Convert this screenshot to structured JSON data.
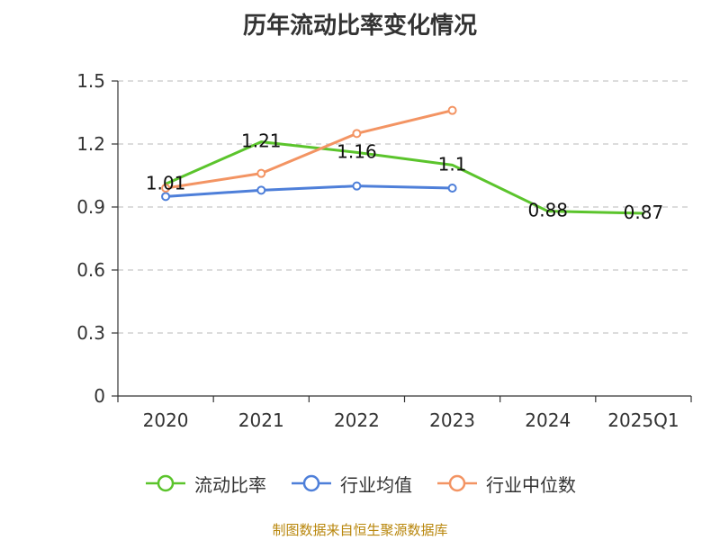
{
  "chart_data": {
    "type": "line",
    "title": "历年流动比率变化情况",
    "categories": [
      "2020",
      "2021",
      "2022",
      "2023",
      "2024",
      "2025Q1"
    ],
    "y_ticks": [
      "0",
      "0.3",
      "0.6",
      "0.9",
      "1.2",
      "1.5"
    ],
    "ylim": [
      0,
      1.5
    ],
    "grid": true,
    "legend_position": "bottom",
    "series": [
      {
        "name": "流动比率",
        "color": "#5bc42c",
        "values": [
          1.01,
          1.21,
          1.16,
          1.1,
          0.88,
          0.87
        ],
        "labels": [
          "1.01",
          "1.21",
          "1.16",
          "1.1",
          "0.88",
          "0.87"
        ],
        "show_points": false
      },
      {
        "name": "行业均值",
        "color": "#4e7fd9",
        "values": [
          0.95,
          0.98,
          1.0,
          0.99,
          null,
          null
        ],
        "show_points": true
      },
      {
        "name": "行业中位数",
        "color": "#f39463",
        "values": [
          0.99,
          1.06,
          1.25,
          1.36,
          null,
          null
        ],
        "show_points": true
      }
    ]
  },
  "source": "制图数据来自恒生聚源数据库"
}
